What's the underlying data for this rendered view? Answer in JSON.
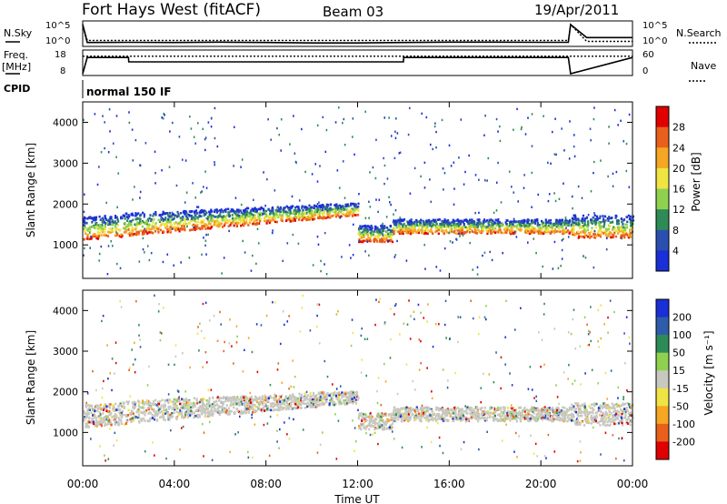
{
  "header": {
    "station": "Fort Hays West (fitACF)",
    "beam": "Beam 03",
    "date": "19/Apr/2011"
  },
  "colors": {
    "axis": "#000000",
    "power_scale": [
      "#1a2fd6",
      "#2a4fb0",
      "#2e8b57",
      "#8fd14f",
      "#f0e442",
      "#f5a623",
      "#e8601c",
      "#e00000"
    ],
    "velocity_scale": [
      "#1a2fd6",
      "#2e5ca8",
      "#2e8b57",
      "#8fd14f",
      "#c8c8c0",
      "#f0e442",
      "#f5a623",
      "#e8601c",
      "#e00000"
    ],
    "ground_scatter": "#c8c8c0"
  },
  "labels": {
    "nsky": "N.Sky",
    "nsearch": "N.Search",
    "freq_line1": "Freq.",
    "freq_line2": "[MHz]",
    "nave": "Nave",
    "cpid": "CPID",
    "cpid_value": "normal 150 IF",
    "nsky_tick_top": "10^5",
    "nsky_tick_bottom": "10^0",
    "nsearch_tick_top": "10^5",
    "nsearch_tick_bottom": "10^0",
    "freq_tick_top": "18",
    "freq_tick_bottom": "8",
    "nave_tick_top": "60",
    "nave_tick_bottom": "0"
  },
  "chart_data": [
    {
      "type": "line",
      "panel": "noise",
      "x_hours": [
        0,
        0.2,
        2,
        4,
        6,
        8,
        10,
        12,
        14,
        16,
        18,
        20,
        21.2,
        21.3,
        22,
        24
      ],
      "series": [
        {
          "name": "N.Sky",
          "values": [
            5,
            0.3,
            0.35,
            0.3,
            0.4,
            0.3,
            0.2,
            0.2,
            0.3,
            0.4,
            0.4,
            0.35,
            0.35,
            5,
            1.6,
            1.6
          ]
        },
        {
          "name": "N.Search",
          "values": [
            5,
            0.85,
            0.85,
            0.86,
            0.85,
            0.84,
            0.85,
            0.86,
            0.85,
            0.85,
            0.85,
            0.85,
            0.85,
            5,
            0.6,
            0.6
          ]
        }
      ]
    },
    {
      "type": "line",
      "panel": "frequency",
      "x_hours": [
        0,
        0.2,
        2,
        2.01,
        14,
        14.01,
        21.2,
        21.3,
        24
      ],
      "series": [
        {
          "name": "Freq.",
          "values": [
            8,
            16.5,
            16.5,
            14.2,
            14.2,
            16.5,
            16.5,
            8,
            16.5
          ]
        },
        {
          "name": "Nave",
          "values": [
            55,
            55,
            55,
            55,
            55,
            55,
            55,
            55,
            55
          ]
        }
      ]
    },
    {
      "type": "heatmap",
      "panel": "power",
      "xlabel": "",
      "ylabel": "Slant Range [km]",
      "xlim": [
        0,
        24
      ],
      "ylim": [
        180,
        4500
      ],
      "xticks": [
        "00:00",
        "04:00",
        "08:00",
        "12:00",
        "16:00",
        "20:00",
        "00:00"
      ],
      "yticks": [
        1000,
        2000,
        3000,
        4000
      ],
      "colorbar": {
        "label": "Power [dB]",
        "ticks": [
          4,
          8,
          12,
          16,
          20,
          24,
          28
        ]
      }
    },
    {
      "type": "heatmap",
      "panel": "velocity",
      "xlabel": "Time UT",
      "ylabel": "Slant Range [km]",
      "xlim": [
        0,
        24
      ],
      "ylim": [
        180,
        4500
      ],
      "xticks": [
        "00:00",
        "04:00",
        "08:00",
        "12:00",
        "16:00",
        "20:00",
        "00:00"
      ],
      "yticks": [
        1000,
        2000,
        3000,
        4000
      ],
      "colorbar": {
        "label": "Velocity [m s⁻¹]",
        "ticks": [
          200,
          100,
          50,
          15,
          -15,
          -50,
          -100,
          -200
        ]
      }
    }
  ]
}
